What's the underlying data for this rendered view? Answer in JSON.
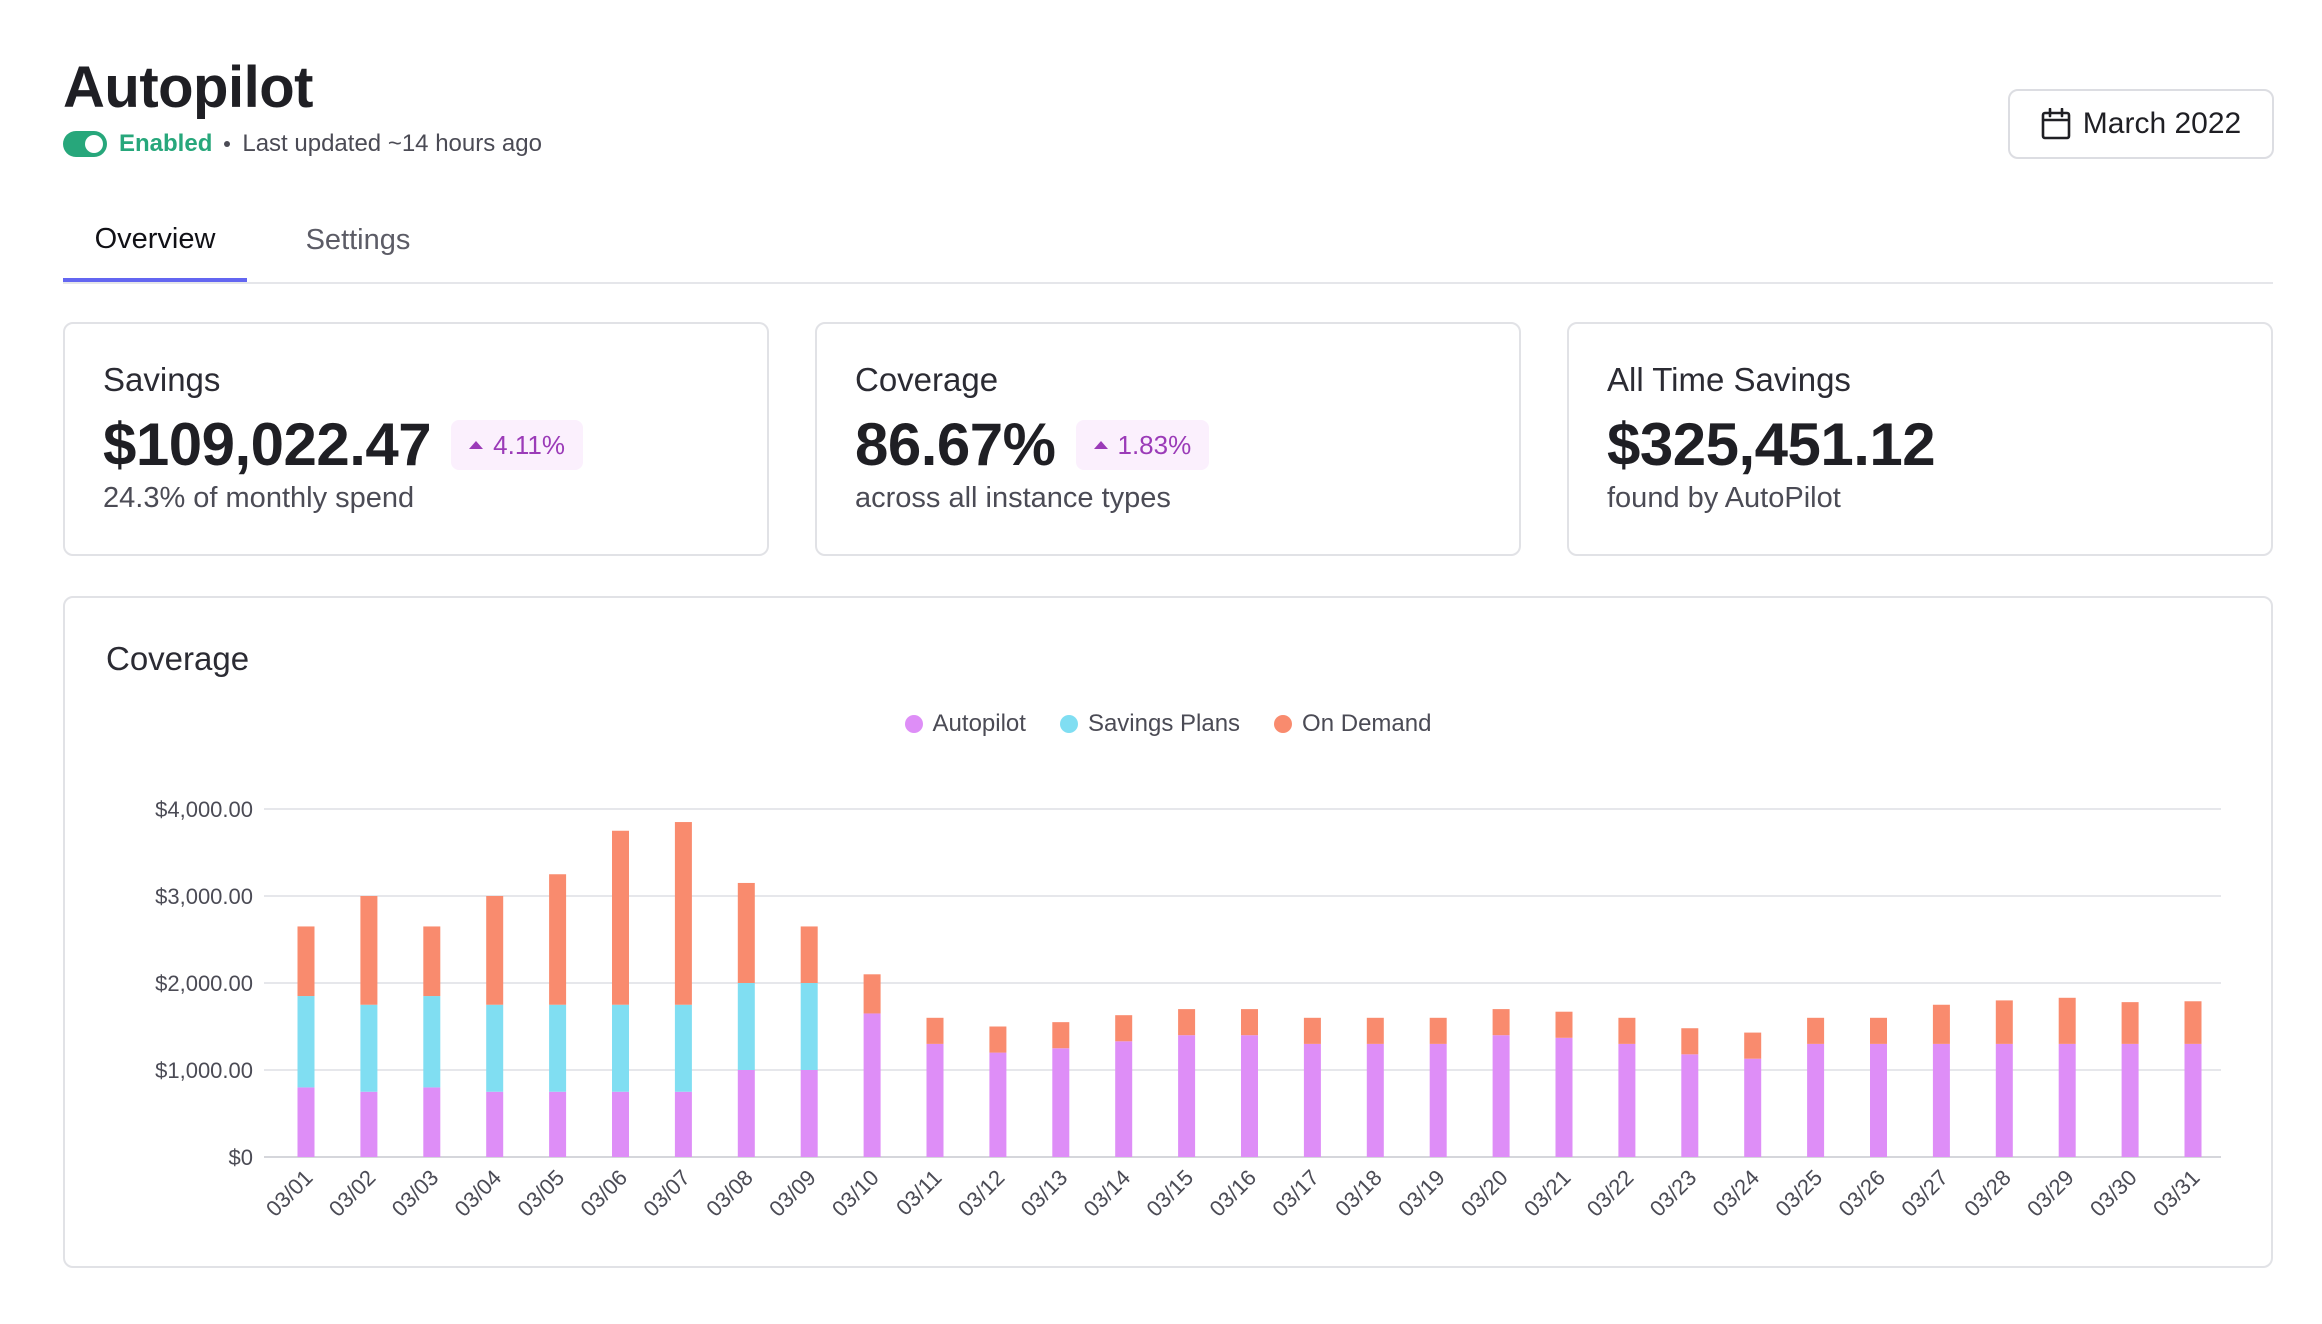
{
  "header": {
    "title": "Autopilot",
    "status": "Enabled",
    "updated": "Last updated ~14 hours ago",
    "toggle_on": true
  },
  "date_picker": {
    "label": "March 2022",
    "icon": "calendar-icon"
  },
  "tabs": [
    {
      "label": "Overview",
      "active": true
    },
    {
      "label": "Settings",
      "active": false
    }
  ],
  "cards": [
    {
      "label": "Savings",
      "value": "$109,022.47",
      "delta": "4.11%",
      "sub": "24.3% of monthly spend"
    },
    {
      "label": "Coverage",
      "value": "86.67%",
      "delta": "1.83%",
      "sub": "across all instance types"
    },
    {
      "label": "All Time Savings",
      "value": "$325,451.12",
      "sub": "found by AutoPilot"
    }
  ],
  "colors": {
    "accent": "#6366f1",
    "enabled": "#27a77b",
    "delta_bg": "#fbf0fd",
    "delta_text": "#9b3bb8"
  },
  "chart_data": {
    "type": "bar",
    "stacked": true,
    "title": "Coverage",
    "ylim": [
      0,
      4000
    ],
    "yticks": [
      "$0",
      "$1,000.00",
      "$2,000.00",
      "$3,000.00",
      "$4,000.00"
    ],
    "grid": true,
    "legend_position": "top-center",
    "categories": [
      "03/01",
      "03/02",
      "03/03",
      "03/04",
      "03/05",
      "03/06",
      "03/07",
      "03/08",
      "03/09",
      "03/10",
      "03/11",
      "03/12",
      "03/13",
      "03/14",
      "03/15",
      "03/16",
      "03/17",
      "03/18",
      "03/19",
      "03/20",
      "03/21",
      "03/22",
      "03/23",
      "03/24",
      "03/25",
      "03/26",
      "03/27",
      "03/28",
      "03/29",
      "03/30",
      "03/31"
    ],
    "series": [
      {
        "name": "Autopilot",
        "color": "#de8ef7",
        "values": [
          800,
          750,
          800,
          750,
          750,
          750,
          750,
          1000,
          1000,
          1650,
          1300,
          1200,
          1250,
          1330,
          1400,
          1400,
          1300,
          1300,
          1300,
          1400,
          1370,
          1300,
          1180,
          1130,
          1300,
          1300,
          1300,
          1300,
          1300,
          1300,
          1300
        ]
      },
      {
        "name": "Savings Plans",
        "color": "#80def2",
        "values": [
          1050,
          1000,
          1050,
          1000,
          1000,
          1000,
          1000,
          1000,
          1000,
          0,
          0,
          0,
          0,
          0,
          0,
          0,
          0,
          0,
          0,
          0,
          0,
          0,
          0,
          0,
          0,
          0,
          0,
          0,
          0,
          0,
          0
        ]
      },
      {
        "name": "On Demand",
        "color": "#f98b6e",
        "values": [
          800,
          1250,
          800,
          1250,
          1500,
          2000,
          2100,
          1150,
          650,
          450,
          300,
          300,
          300,
          300,
          300,
          300,
          300,
          300,
          300,
          300,
          300,
          300,
          300,
          300,
          300,
          300,
          450,
          500,
          530,
          480,
          490
        ]
      }
    ]
  }
}
